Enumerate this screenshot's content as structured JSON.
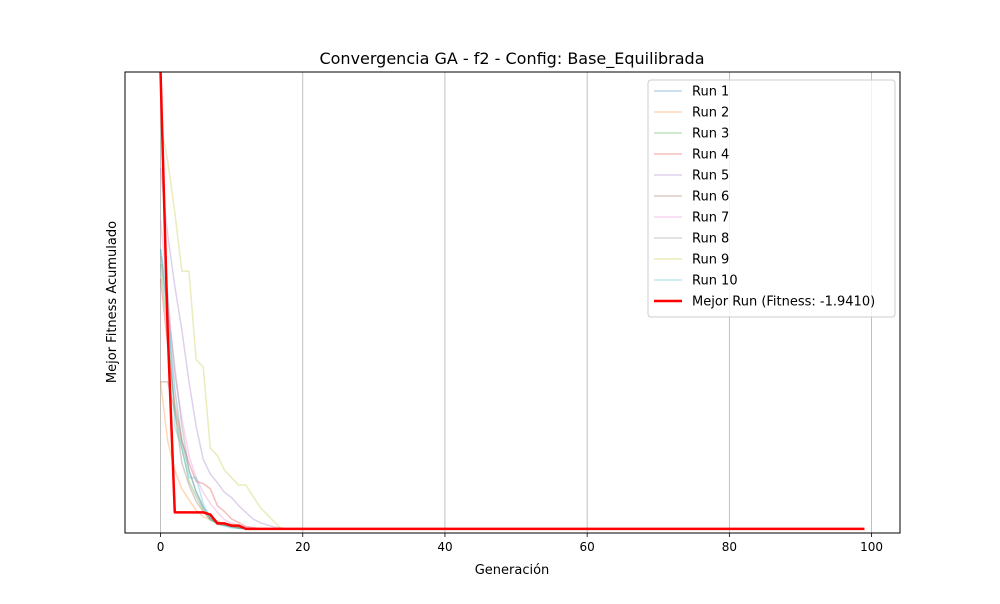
{
  "chart_data": {
    "type": "line",
    "title": "Convergencia GA - f2 - Config: Base_Equilibrada",
    "xlabel": "Generación",
    "ylabel": "Mejor Fitness Acumulado",
    "xlim": [
      -5,
      104
    ],
    "ylim": [
      -2.5,
      60
    ],
    "x_ticks": [
      0,
      20,
      40,
      60,
      80,
      100
    ],
    "y_ticks_shown": false,
    "grid": "x-only",
    "legend_position": "top-right",
    "series": [
      {
        "name": "Run 1",
        "color": "#1f77b4",
        "points": [
          [
            0,
            36
          ],
          [
            1,
            27
          ],
          [
            2,
            17
          ],
          [
            3,
            10
          ],
          [
            4,
            6
          ],
          [
            5,
            3.2
          ],
          [
            6,
            1
          ],
          [
            7,
            -0.5
          ],
          [
            8,
            -1.2
          ],
          [
            10,
            -1.6
          ],
          [
            12,
            -1.9
          ],
          [
            14,
            -1.94
          ],
          [
            99,
            -1.94
          ]
        ]
      },
      {
        "name": "Run 2",
        "color": "#ff7f0e",
        "points": [
          [
            0,
            18
          ],
          [
            1,
            10
          ],
          [
            2,
            6
          ],
          [
            3,
            3.5
          ],
          [
            4,
            2
          ],
          [
            5,
            0.6
          ],
          [
            6,
            -0.3
          ],
          [
            8,
            -1
          ],
          [
            10,
            -1.5
          ],
          [
            12,
            -1.85
          ],
          [
            14,
            -1.94
          ],
          [
            99,
            -1.94
          ]
        ]
      },
      {
        "name": "Run 3",
        "color": "#2ca02c",
        "points": [
          [
            0,
            34
          ],
          [
            1,
            25
          ],
          [
            2,
            14
          ],
          [
            3,
            9
          ],
          [
            4,
            4.5
          ],
          [
            5,
            2.5
          ],
          [
            6,
            0.6
          ],
          [
            7,
            -0.8
          ],
          [
            9,
            -1.4
          ],
          [
            11,
            -1.85
          ],
          [
            13,
            -1.94
          ],
          [
            99,
            -1.94
          ]
        ]
      },
      {
        "name": "Run 4",
        "color": "#d62728",
        "points": [
          [
            0,
            32
          ],
          [
            1,
            23
          ],
          [
            2,
            15
          ],
          [
            3,
            10
          ],
          [
            4,
            7
          ],
          [
            5,
            4.5
          ],
          [
            6,
            4.2
          ],
          [
            7,
            3.5
          ],
          [
            8,
            1.2
          ],
          [
            9,
            0.4
          ],
          [
            10,
            -0.6
          ],
          [
            11,
            -1.1
          ],
          [
            12,
            -1.6
          ],
          [
            14,
            -1.94
          ],
          [
            99,
            -1.94
          ]
        ]
      },
      {
        "name": "Run 5",
        "color": "#9467bd",
        "points": [
          [
            0,
            47
          ],
          [
            1,
            38
          ],
          [
            2,
            31
          ],
          [
            3,
            25
          ],
          [
            4,
            18
          ],
          [
            5,
            12
          ],
          [
            6,
            7.5
          ],
          [
            7,
            5.5
          ],
          [
            8,
            4.3
          ],
          [
            9,
            3
          ],
          [
            10,
            2.3
          ],
          [
            11,
            1.2
          ],
          [
            12,
            0.3
          ],
          [
            13,
            -0.6
          ],
          [
            14,
            -1.1
          ],
          [
            16,
            -1.7
          ],
          [
            18,
            -1.94
          ],
          [
            99,
            -1.94
          ]
        ]
      },
      {
        "name": "Run 6",
        "color": "#8c564b",
        "points": [
          [
            0,
            18
          ],
          [
            1,
            18
          ],
          [
            2,
            14
          ],
          [
            3,
            7
          ],
          [
            4,
            4
          ],
          [
            5,
            1.8
          ],
          [
            6,
            0.4
          ],
          [
            7,
            -0.6
          ],
          [
            8,
            -1.3
          ],
          [
            10,
            -1.7
          ],
          [
            12,
            -1.94
          ],
          [
            99,
            -1.94
          ]
        ]
      },
      {
        "name": "Run 7",
        "color": "#e377c2",
        "points": [
          [
            0,
            40
          ],
          [
            1,
            30
          ],
          [
            2,
            19
          ],
          [
            3,
            13
          ],
          [
            4,
            8
          ],
          [
            5,
            5
          ],
          [
            6,
            3
          ],
          [
            7,
            1.5
          ],
          [
            8,
            0.3
          ],
          [
            9,
            -0.7
          ],
          [
            10,
            -1.2
          ],
          [
            12,
            -1.7
          ],
          [
            14,
            -1.94
          ],
          [
            99,
            -1.94
          ]
        ]
      },
      {
        "name": "Run 8",
        "color": "#7f7f7f",
        "points": [
          [
            0,
            35
          ],
          [
            1,
            28
          ],
          [
            2,
            20
          ],
          [
            3,
            12
          ],
          [
            4,
            6
          ],
          [
            5,
            3
          ],
          [
            6,
            1
          ],
          [
            7,
            -0.4
          ],
          [
            9,
            -1.3
          ],
          [
            11,
            -1.8
          ],
          [
            13,
            -1.94
          ],
          [
            99,
            -1.94
          ]
        ]
      },
      {
        "name": "Run 9",
        "color": "#bcbd22",
        "points": [
          [
            0,
            53
          ],
          [
            1,
            48
          ],
          [
            2,
            41
          ],
          [
            3,
            33
          ],
          [
            4,
            33
          ],
          [
            5,
            21
          ],
          [
            6,
            20
          ],
          [
            7,
            9
          ],
          [
            8,
            8
          ],
          [
            9,
            6
          ],
          [
            10,
            5
          ],
          [
            11,
            4
          ],
          [
            12,
            4
          ],
          [
            13,
            2.5
          ],
          [
            14,
            1
          ],
          [
            15,
            0
          ],
          [
            16,
            -1
          ],
          [
            17,
            -1.94
          ],
          [
            99,
            -1.94
          ]
        ]
      },
      {
        "name": "Run 10",
        "color": "#17becf",
        "points": [
          [
            0,
            36
          ],
          [
            1,
            30
          ],
          [
            2,
            12
          ],
          [
            3,
            9
          ],
          [
            4,
            5
          ],
          [
            5,
            5
          ],
          [
            6,
            1.5
          ],
          [
            7,
            -0.5
          ],
          [
            8,
            -1.3
          ],
          [
            10,
            -1.8
          ],
          [
            12,
            -1.94
          ],
          [
            99,
            -1.94
          ]
        ]
      },
      {
        "name": "Mejor Run (Fitness: -1.9410)",
        "color": "#ff0000",
        "highlight": true,
        "points": [
          [
            0,
            60
          ],
          [
            1,
            25
          ],
          [
            2,
            0.3
          ],
          [
            3,
            0.3
          ],
          [
            4,
            0.3
          ],
          [
            5,
            0.3
          ],
          [
            6,
            0.3
          ],
          [
            7,
            0
          ],
          [
            8,
            -1.2
          ],
          [
            9,
            -1.2
          ],
          [
            10,
            -1.5
          ],
          [
            11,
            -1.5
          ],
          [
            12,
            -1.94
          ],
          [
            99,
            -1.94
          ]
        ]
      }
    ]
  }
}
